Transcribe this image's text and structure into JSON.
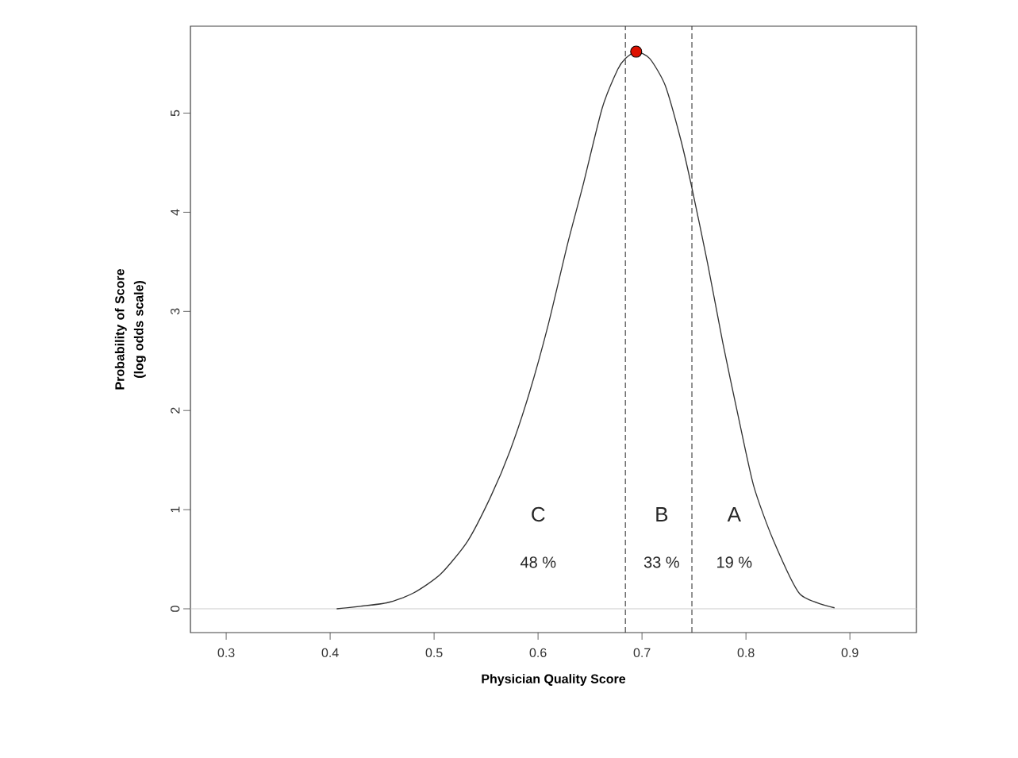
{
  "chart_data": {
    "type": "line",
    "xlabel": "Physician Quality Score",
    "ylabel": "Probability of Score (log odds scale)",
    "xlim": [
      0.2656,
      0.964
    ],
    "ylim": [
      -0.24,
      5.877
    ],
    "xticks": [
      0.3,
      0.4,
      0.5,
      0.6,
      0.7,
      0.8,
      0.9
    ],
    "yticks": [
      0,
      1,
      2,
      3,
      4,
      5
    ],
    "grid": false,
    "series": [
      {
        "color": "#333333",
        "x": [
          0.4063,
          0.4544,
          0.4803,
          0.5063,
          0.5321,
          0.5544,
          0.5729,
          0.5914,
          0.6099,
          0.6284,
          0.6432,
          0.6617,
          0.6766,
          0.684,
          0.6944,
          0.7075,
          0.7223,
          0.7371,
          0.7475,
          0.763,
          0.7778,
          0.7926,
          0.8074,
          0.826,
          0.8518,
          0.8852
        ],
        "values": [
          0,
          0.06,
          0.16,
          0.35,
          0.68,
          1.13,
          1.59,
          2.17,
          2.87,
          3.68,
          4.27,
          5.05,
          5.44,
          5.55,
          5.62,
          5.55,
          5.28,
          4.74,
          4.27,
          3.49,
          2.68,
          1.94,
          1.24,
          0.7,
          0.15,
          0.01
        ]
      },
      {
        "type": "scatter",
        "color": "#dd1100",
        "x": [
          0.6944
        ],
        "values": [
          5.62
        ]
      }
    ],
    "ref_lines": [
      {
        "axis": "x",
        "value": 0.684,
        "color": "#333333",
        "line_style": "dashed"
      },
      {
        "axis": "x",
        "value": 0.748,
        "color": "#333333",
        "line_style": "dashed"
      },
      {
        "axis": "y",
        "value": 0,
        "color": "#cccccc",
        "line_style": "solid"
      }
    ],
    "annotations": [
      "C",
      "48 %",
      "B",
      "33 %",
      "A",
      "19 %"
    ]
  }
}
